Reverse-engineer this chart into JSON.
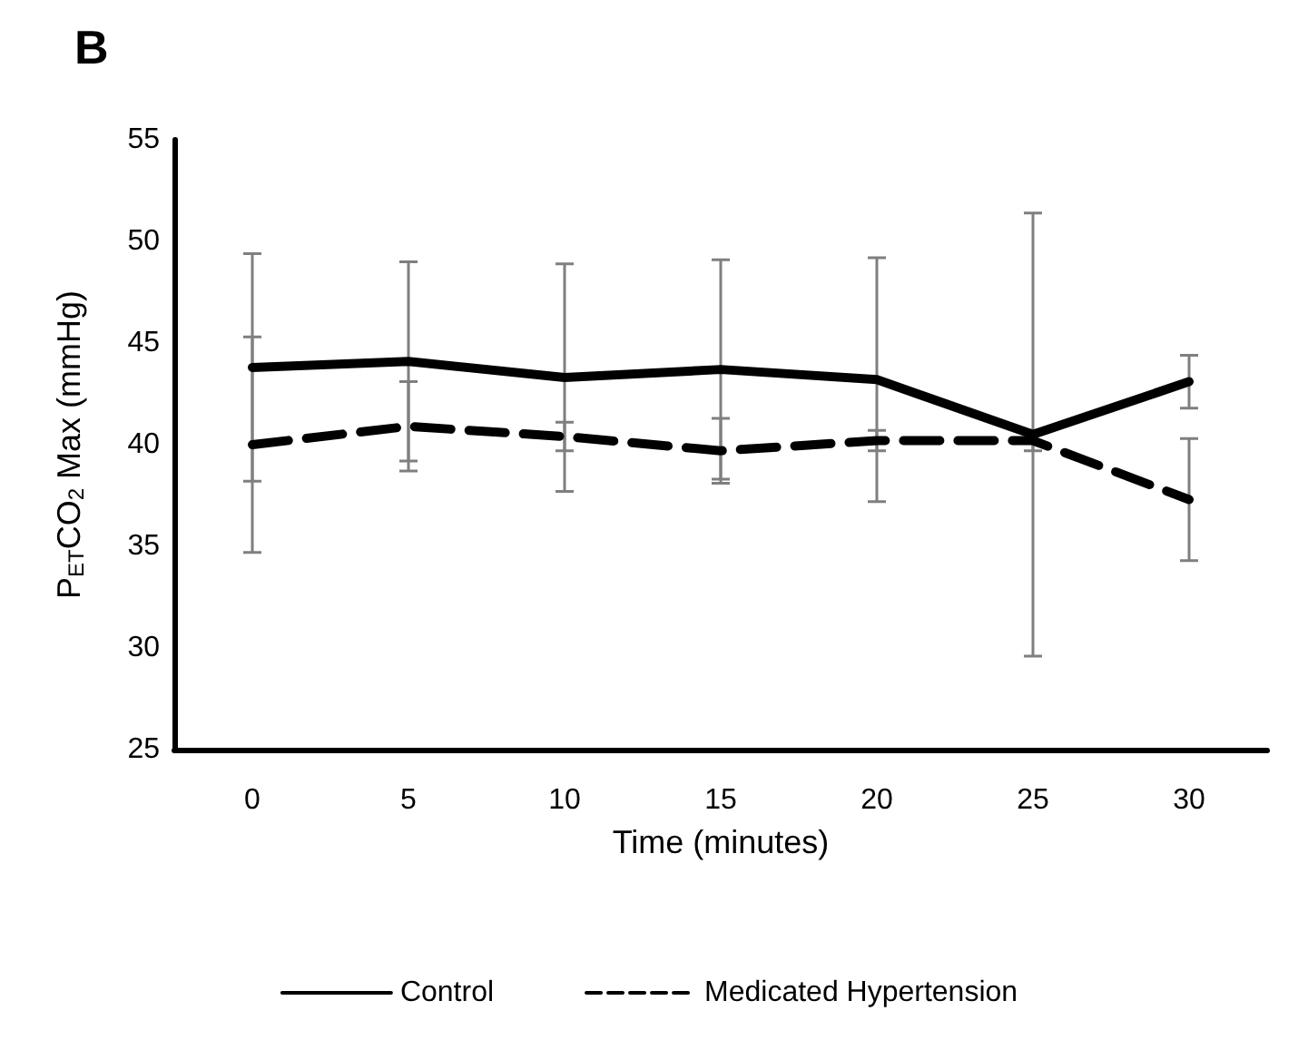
{
  "chart_data": {
    "type": "line",
    "title": "B",
    "xlabel": "Time (minutes)",
    "ylabel": "P$_{ET}$CO$_{2}$ Max (mmHg)",
    "categories": [
      "0",
      "5",
      "10",
      "15",
      "20",
      "25",
      "30"
    ],
    "series": [
      {
        "name": "Control",
        "color": "#000000",
        "line_style": "solid",
        "values": [
          43.8,
          44.1,
          43.3,
          43.7,
          43.2,
          40.5,
          43.1
        ],
        "errors": [
          5.6,
          4.9,
          5.6,
          5.4,
          6.0,
          10.9,
          1.3
        ]
      },
      {
        "name": "Medicated Hypertension",
        "color": "#000000",
        "line_style": "dashed",
        "values": [
          40.0,
          40.9,
          40.4,
          39.7,
          40.2,
          40.2,
          37.3
        ],
        "errors": [
          5.3,
          2.2,
          0.7,
          1.6,
          0.5,
          0.5,
          3.0
        ]
      }
    ],
    "ylim": [
      25,
      55
    ],
    "yticks": [
      25,
      30,
      35,
      40,
      45,
      50,
      55
    ],
    "grid": false,
    "legend": "bottom",
    "marker": "none"
  }
}
